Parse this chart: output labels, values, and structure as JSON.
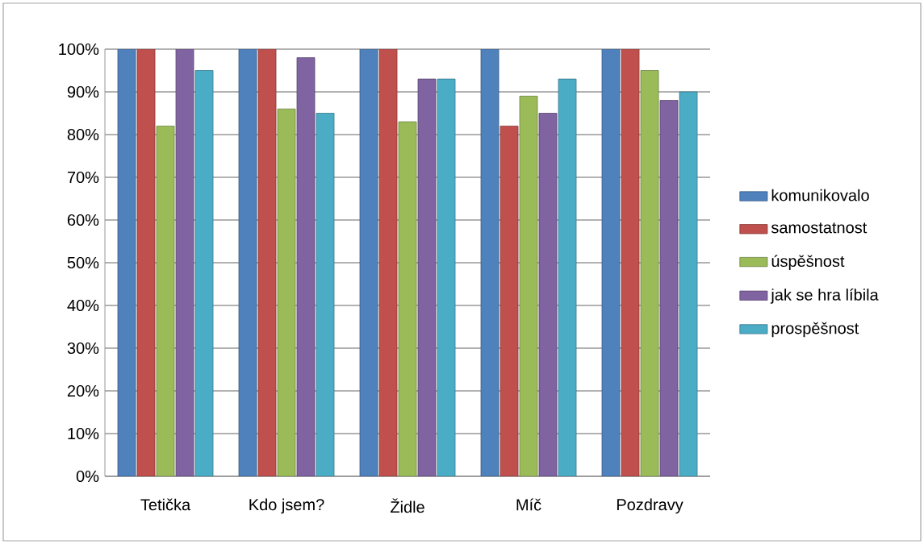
{
  "chart_data": {
    "type": "bar",
    "categories": [
      "Tetička",
      "Kdo jsem?",
      "Židle",
      "Míč",
      "Pozdravy"
    ],
    "series": [
      {
        "name": "komunikovalo",
        "color": "#4f81bd",
        "values": [
          100,
          100,
          100,
          100,
          100
        ]
      },
      {
        "name": "samostatnost",
        "color": "#c0504d",
        "values": [
          100,
          100,
          100,
          82,
          100
        ]
      },
      {
        "name": "úspěšnost",
        "color": "#9bbb59",
        "values": [
          82,
          86,
          83,
          89,
          95
        ]
      },
      {
        "name": "jak se hra líbila",
        "color": "#8064a2",
        "values": [
          100,
          98,
          93,
          85,
          88
        ]
      },
      {
        "name": "prospěšnost",
        "color": "#4bacc6",
        "values": [
          95,
          85,
          93,
          93,
          90
        ]
      }
    ],
    "ylim": [
      0,
      100
    ],
    "yticks": [
      {
        "value": 0,
        "label": "0%"
      },
      {
        "value": 10,
        "label": "10%"
      },
      {
        "value": 20,
        "label": "20%"
      },
      {
        "value": 30,
        "label": "30%"
      },
      {
        "value": 40,
        "label": "40%"
      },
      {
        "value": 50,
        "label": "50%"
      },
      {
        "value": 60,
        "label": "60%"
      },
      {
        "value": 70,
        "label": "70%"
      },
      {
        "value": 80,
        "label": "80%"
      },
      {
        "value": 90,
        "label": "90%"
      },
      {
        "value": 100,
        "label": "100%"
      }
    ],
    "grid": "y",
    "legend": "right"
  }
}
